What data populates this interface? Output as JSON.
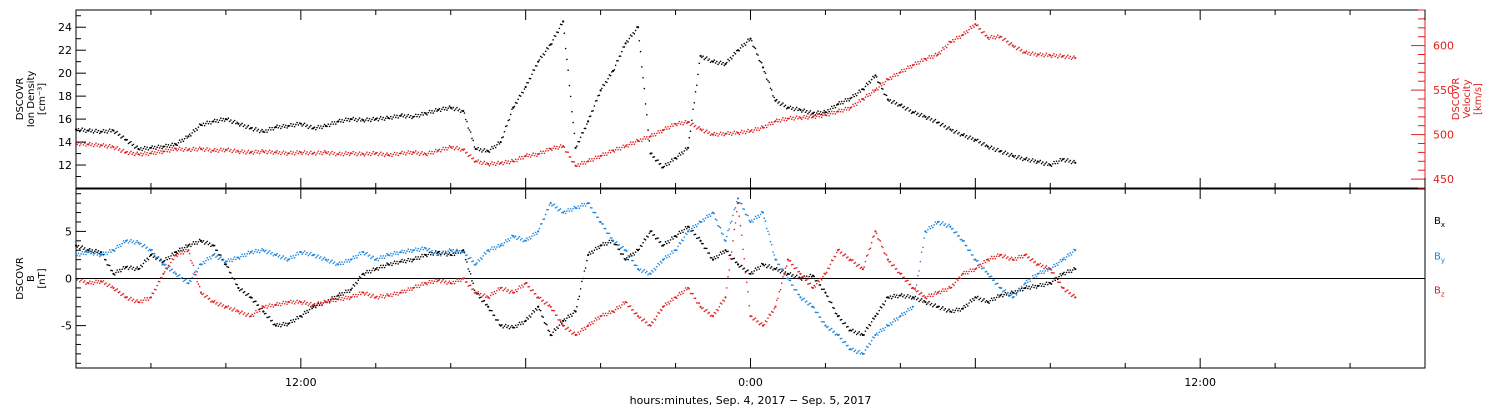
{
  "chart_data": [
    {
      "type": "line",
      "panel": "top",
      "ylabel_left": [
        "DSCOVR",
        "Ion Density",
        "[cm⁻³]"
      ],
      "ylabel_right": [
        "DSCOVR",
        "Velocity",
        "[km/s]"
      ],
      "left_ylim": [
        10,
        25.5
      ],
      "left_yticks": [
        12,
        14,
        16,
        18,
        20,
        22,
        24
      ],
      "right_ylim": [
        440,
        640
      ],
      "right_yticks": [
        450,
        500,
        550,
        600
      ],
      "colors": {
        "density": "#000000",
        "velocity": "#e02020"
      },
      "series": [
        {
          "axis": "left",
          "color": "#000000",
          "x": [
            0,
            0.5,
            1.0,
            1.5,
            2.0,
            2.5,
            3.0,
            3.5,
            4.0,
            4.5,
            5.0,
            5.5,
            6.0,
            6.5,
            7.0,
            7.5,
            8.0,
            8.5,
            9.0,
            9.5,
            10.0,
            10.5,
            11.0,
            11.5,
            12.0,
            12.5,
            13.0,
            13.5,
            14.0,
            14.5,
            15.0,
            15.5,
            16.0,
            16.5,
            17.0,
            17.5,
            18.0,
            18.5,
            19.0,
            19.5,
            20.0,
            20.5,
            21.0,
            21.5,
            22.0,
            22.5,
            23.0,
            23.5,
            24.0,
            24.5,
            25.0,
            25.5,
            26.0,
            26.5,
            27.0,
            27.5,
            28.0,
            28.5,
            29.0,
            29.5,
            30.0,
            30.5,
            31.0,
            31.5,
            32.0,
            32.5,
            33.0,
            33.5,
            34.0,
            34.5,
            35.0,
            35.5,
            36.0,
            36.5,
            37.0,
            37.5,
            38.0,
            38.5,
            39.0,
            39.5,
            40.0
          ],
          "y": [
            15.1,
            15.0,
            14.9,
            15.0,
            14.2,
            13.4,
            13.5,
            13.6,
            13.8,
            14.5,
            15.5,
            15.8,
            16.0,
            15.6,
            15.2,
            14.9,
            15.3,
            15.4,
            15.6,
            15.2,
            15.4,
            15.8,
            16.0,
            15.9,
            16.0,
            16.1,
            16.3,
            16.2,
            16.5,
            16.8,
            17.0,
            16.7,
            13.4,
            13.2,
            14.0,
            17.0,
            18.8,
            21.0,
            22.5,
            24.5,
            13.5,
            15.8,
            18.5,
            20.2,
            22.6,
            24.0,
            13.0,
            11.8,
            12.6,
            13.5,
            21.5,
            21.0,
            20.8,
            22.0,
            23.0,
            20.5,
            17.6,
            17.0,
            16.8,
            16.5,
            16.6,
            17.3,
            17.8,
            18.6,
            19.8,
            17.7,
            17.2,
            16.6,
            16.2,
            15.7,
            15.1,
            14.6,
            14.2,
            13.6,
            13.2,
            12.8,
            12.5,
            12.3,
            12.0,
            12.5,
            12.2
          ]
        },
        {
          "axis": "right",
          "color": "#e02020",
          "x": [
            0,
            0.5,
            1.0,
            1.5,
            2.0,
            2.5,
            3.0,
            3.5,
            4.0,
            4.5,
            5.0,
            5.5,
            6.0,
            6.5,
            7.0,
            7.5,
            8.0,
            8.5,
            9.0,
            9.5,
            10.0,
            10.5,
            11.0,
            11.5,
            12.0,
            12.5,
            13.0,
            13.5,
            14.0,
            14.5,
            15.0,
            15.5,
            16.0,
            16.5,
            17.0,
            17.5,
            18.0,
            18.5,
            19.0,
            19.5,
            20.0,
            20.5,
            21.0,
            21.5,
            22.0,
            22.5,
            23.0,
            23.5,
            24.0,
            24.5,
            25.0,
            25.5,
            26.0,
            26.5,
            27.0,
            27.5,
            28.0,
            28.5,
            29.0,
            29.5,
            30.0,
            30.5,
            31.0,
            31.5,
            32.0,
            32.5,
            33.0,
            33.5,
            34.0,
            34.5,
            35.0,
            35.5,
            36.0,
            36.5,
            37.0,
            37.5,
            38.0,
            38.5,
            39.0,
            39.5,
            40.0
          ],
          "y": [
            490,
            489,
            488,
            486,
            480,
            478,
            479,
            481,
            484,
            483,
            484,
            482,
            483,
            481,
            480,
            481,
            480,
            479,
            480,
            479,
            480,
            478,
            479,
            478,
            479,
            477,
            479,
            480,
            478,
            482,
            486,
            483,
            470,
            467,
            468,
            470,
            476,
            478,
            484,
            487,
            465,
            470,
            476,
            482,
            487,
            493,
            498,
            505,
            512,
            514,
            506,
            500,
            501,
            502,
            504,
            508,
            515,
            518,
            519,
            520,
            522,
            526,
            530,
            540,
            550,
            562,
            570,
            578,
            585,
            590,
            604,
            612,
            624,
            609,
            610,
            600,
            592,
            590,
            589,
            588,
            586
          ]
        }
      ]
    },
    {
      "type": "line",
      "panel": "bottom",
      "ylabel_left": [
        "DSCOVR",
        "B",
        "[nT]"
      ],
      "ylim": [
        -9.5,
        9.5
      ],
      "yticks": [
        -5,
        0,
        5
      ],
      "zero_line": true,
      "legend": [
        "B",
        "B",
        "B"
      ],
      "legend_subscripts": [
        "x",
        "y",
        "z"
      ],
      "colors": {
        "Bx": "#000000",
        "By": "#1a86e0",
        "Bz": "#e02020"
      },
      "series": [
        {
          "name": "Bx",
          "color": "#000000",
          "x": [
            0,
            0.5,
            1.0,
            1.5,
            2.0,
            2.5,
            3.0,
            3.5,
            4.0,
            4.5,
            5.0,
            5.5,
            6.0,
            6.5,
            7.0,
            7.5,
            8.0,
            8.5,
            9.0,
            9.5,
            10.0,
            10.5,
            11.0,
            11.5,
            12.0,
            12.5,
            13.0,
            13.5,
            14.0,
            14.5,
            15.0,
            15.5,
            16.0,
            16.5,
            17.0,
            17.5,
            18.0,
            18.5,
            19.0,
            19.5,
            20.0,
            20.5,
            21.0,
            21.5,
            22.0,
            22.5,
            23.0,
            23.5,
            24.0,
            24.5,
            25.0,
            25.5,
            26.0,
            26.5,
            27.0,
            27.5,
            28.0,
            28.5,
            29.0,
            29.5,
            30.0,
            30.5,
            31.0,
            31.5,
            32.0,
            32.5,
            33.0,
            33.5,
            34.0,
            34.5,
            35.0,
            35.5,
            36.0,
            36.5,
            37.0,
            37.5,
            38.0,
            38.5,
            39.0,
            39.5,
            40.0
          ],
          "y": [
            3.5,
            3.0,
            2.8,
            0.5,
            1.2,
            1.0,
            2.5,
            1.8,
            2.8,
            3.5,
            4.0,
            3.5,
            1.5,
            -1.0,
            -2.0,
            -3.5,
            -5.0,
            -4.8,
            -4.0,
            -3.0,
            -2.5,
            -1.8,
            -1.2,
            0.5,
            1.0,
            1.5,
            1.8,
            2.0,
            2.5,
            2.8,
            2.5,
            3.0,
            -1.5,
            -3.0,
            -5.0,
            -5.2,
            -4.5,
            -3.0,
            -6.0,
            -4.5,
            -3.5,
            2.5,
            3.5,
            4.0,
            2.0,
            3.0,
            5.0,
            3.5,
            4.5,
            5.5,
            4.0,
            2.0,
            3.0,
            1.5,
            0.5,
            1.5,
            1.0,
            0.5,
            0.0,
            0.3,
            -1.5,
            -4.0,
            -5.5,
            -6.0,
            -4.0,
            -2.0,
            -1.8,
            -2.0,
            -2.5,
            -3.0,
            -3.5,
            -3.2,
            -2.0,
            -2.5,
            -1.8,
            -1.5,
            -1.0,
            -0.8,
            -0.5,
            0.5,
            1.0
          ]
        },
        {
          "name": "By",
          "color": "#1a86e0",
          "x": [
            0,
            0.5,
            1.0,
            1.5,
            2.0,
            2.5,
            3.0,
            3.5,
            4.0,
            4.5,
            5.0,
            5.5,
            6.0,
            6.5,
            7.0,
            7.5,
            8.0,
            8.5,
            9.0,
            9.5,
            10.0,
            10.5,
            11.0,
            11.5,
            12.0,
            12.5,
            13.0,
            13.5,
            14.0,
            14.5,
            15.0,
            15.5,
            16.0,
            16.5,
            17.0,
            17.5,
            18.0,
            18.5,
            19.0,
            19.5,
            20.0,
            20.5,
            21.0,
            21.5,
            22.0,
            22.5,
            23.0,
            23.5,
            24.0,
            24.5,
            25.0,
            25.5,
            26.0,
            26.5,
            27.0,
            27.5,
            28.0,
            28.5,
            29.0,
            29.5,
            30.0,
            30.5,
            31.0,
            31.5,
            32.0,
            32.5,
            33.0,
            33.5,
            34.0,
            34.5,
            35.0,
            35.5,
            36.0,
            36.5,
            37.0,
            37.5,
            38.0,
            38.5,
            39.0,
            39.5,
            40.0
          ],
          "y": [
            2.5,
            2.8,
            2.5,
            3.0,
            4.0,
            3.8,
            3.0,
            1.5,
            0.5,
            -0.5,
            1.5,
            2.5,
            1.8,
            2.2,
            2.8,
            3.0,
            2.5,
            2.0,
            2.8,
            2.5,
            2.0,
            1.5,
            2.0,
            2.8,
            2.0,
            2.5,
            2.8,
            3.0,
            3.2,
            2.5,
            3.0,
            2.8,
            1.5,
            3.0,
            3.5,
            4.5,
            4.0,
            5.0,
            8.0,
            7.0,
            7.5,
            8.0,
            6.0,
            4.0,
            3.0,
            1.0,
            0.5,
            2.0,
            3.0,
            5.0,
            6.0,
            7.0,
            4.0,
            8.5,
            6.0,
            7.0,
            2.0,
            0.0,
            -2.0,
            -3.0,
            -5.0,
            -6.0,
            -7.5,
            -8.0,
            -6.0,
            -5.0,
            -4.0,
            -3.0,
            5.0,
            6.0,
            5.5,
            4.0,
            2.0,
            0.5,
            -1.0,
            -2.0,
            -0.5,
            0.5,
            1.0,
            2.0,
            3.0
          ]
        },
        {
          "name": "Bz",
          "color": "#e02020",
          "x": [
            0,
            0.5,
            1.0,
            1.5,
            2.0,
            2.5,
            3.0,
            3.5,
            4.0,
            4.5,
            5.0,
            5.5,
            6.0,
            6.5,
            7.0,
            7.5,
            8.0,
            8.5,
            9.0,
            9.5,
            10.0,
            10.5,
            11.0,
            11.5,
            12.0,
            12.5,
            13.0,
            13.5,
            14.0,
            14.5,
            15.0,
            15.5,
            16.0,
            16.5,
            17.0,
            17.5,
            18.0,
            18.5,
            19.0,
            19.5,
            20.0,
            20.5,
            21.0,
            21.5,
            22.0,
            22.5,
            23.0,
            23.5,
            24.0,
            24.5,
            25.0,
            25.5,
            26.0,
            26.5,
            27.0,
            27.5,
            28.0,
            28.5,
            29.0,
            29.5,
            30.0,
            30.5,
            31.0,
            31.5,
            32.0,
            32.5,
            33.0,
            33.5,
            34.0,
            34.5,
            35.0,
            35.5,
            36.0,
            36.5,
            37.0,
            37.5,
            38.0,
            38.5,
            39.0,
            39.5,
            40.0
          ],
          "y": [
            0.0,
            -0.5,
            -0.3,
            -1.0,
            -2.0,
            -2.5,
            -2.0,
            0.5,
            2.5,
            3.0,
            -1.5,
            -2.5,
            -3.0,
            -3.5,
            -4.0,
            -3.0,
            -2.8,
            -2.5,
            -2.5,
            -2.8,
            -2.5,
            -2.2,
            -2.0,
            -1.5,
            -2.0,
            -1.8,
            -1.5,
            -1.0,
            -0.5,
            -0.2,
            -0.5,
            0.0,
            -1.5,
            -2.0,
            -1.0,
            -1.5,
            -0.5,
            -2.0,
            -3.0,
            -5.0,
            -6.0,
            -5.0,
            -4.0,
            -3.5,
            -2.5,
            -4.0,
            -5.0,
            -3.0,
            -2.0,
            -1.0,
            -3.0,
            -4.0,
            -2.0,
            8.0,
            -4.0,
            -5.0,
            -3.0,
            2.0,
            0.5,
            -1.0,
            0.5,
            3.0,
            2.0,
            1.0,
            5.0,
            2.0,
            0.5,
            -1.0,
            -2.0,
            -1.5,
            -1.0,
            0.5,
            1.0,
            2.0,
            2.5,
            2.0,
            2.5,
            1.5,
            1.0,
            -1.0,
            -2.0
          ]
        }
      ]
    }
  ],
  "x_axis": {
    "xlim": [
      0,
      54
    ],
    "tick_labels": [
      {
        "x": 9,
        "label": "12:00"
      },
      {
        "x": 27,
        "label": "0:00"
      },
      {
        "x": 45,
        "label": "12:00"
      }
    ],
    "minor_tick_step": 3,
    "xlabel": "hours:minutes, Sep.  4, 2017 − Sep.  5, 2017"
  }
}
